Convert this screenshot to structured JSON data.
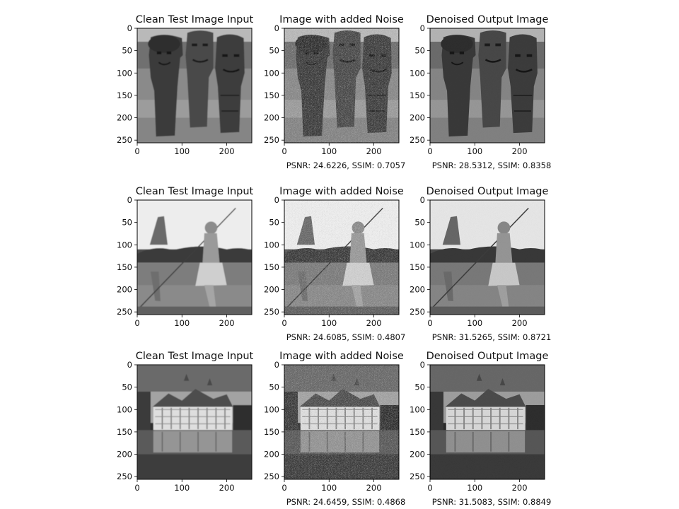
{
  "panel_titles": [
    "Clean Test Image Input",
    "Image with added Noise",
    "Denoised Output Image"
  ],
  "axis": {
    "x_ticks": [
      "0",
      "100",
      "200"
    ],
    "y_ticks": [
      "0",
      "50",
      "100",
      "150",
      "200",
      "250"
    ]
  },
  "rows": [
    {
      "subject": "tiki-statues",
      "noisy_metrics": "PSNR: 24.6226, SSIM: 0.7057",
      "denoised_metrics": "PSNR: 28.5312, SSIM: 0.8358"
    },
    {
      "subject": "girl-with-pole",
      "noisy_metrics": "PSNR: 24.6085, SSIM: 0.4807",
      "denoised_metrics": "PSNR: 31.5265, SSIM: 0.8721"
    },
    {
      "subject": "chateau-reflection",
      "noisy_metrics": "PSNR: 24.6459, SSIM: 0.4868",
      "denoised_metrics": "PSNR: 31.5083, SSIM: 0.8849"
    }
  ]
}
